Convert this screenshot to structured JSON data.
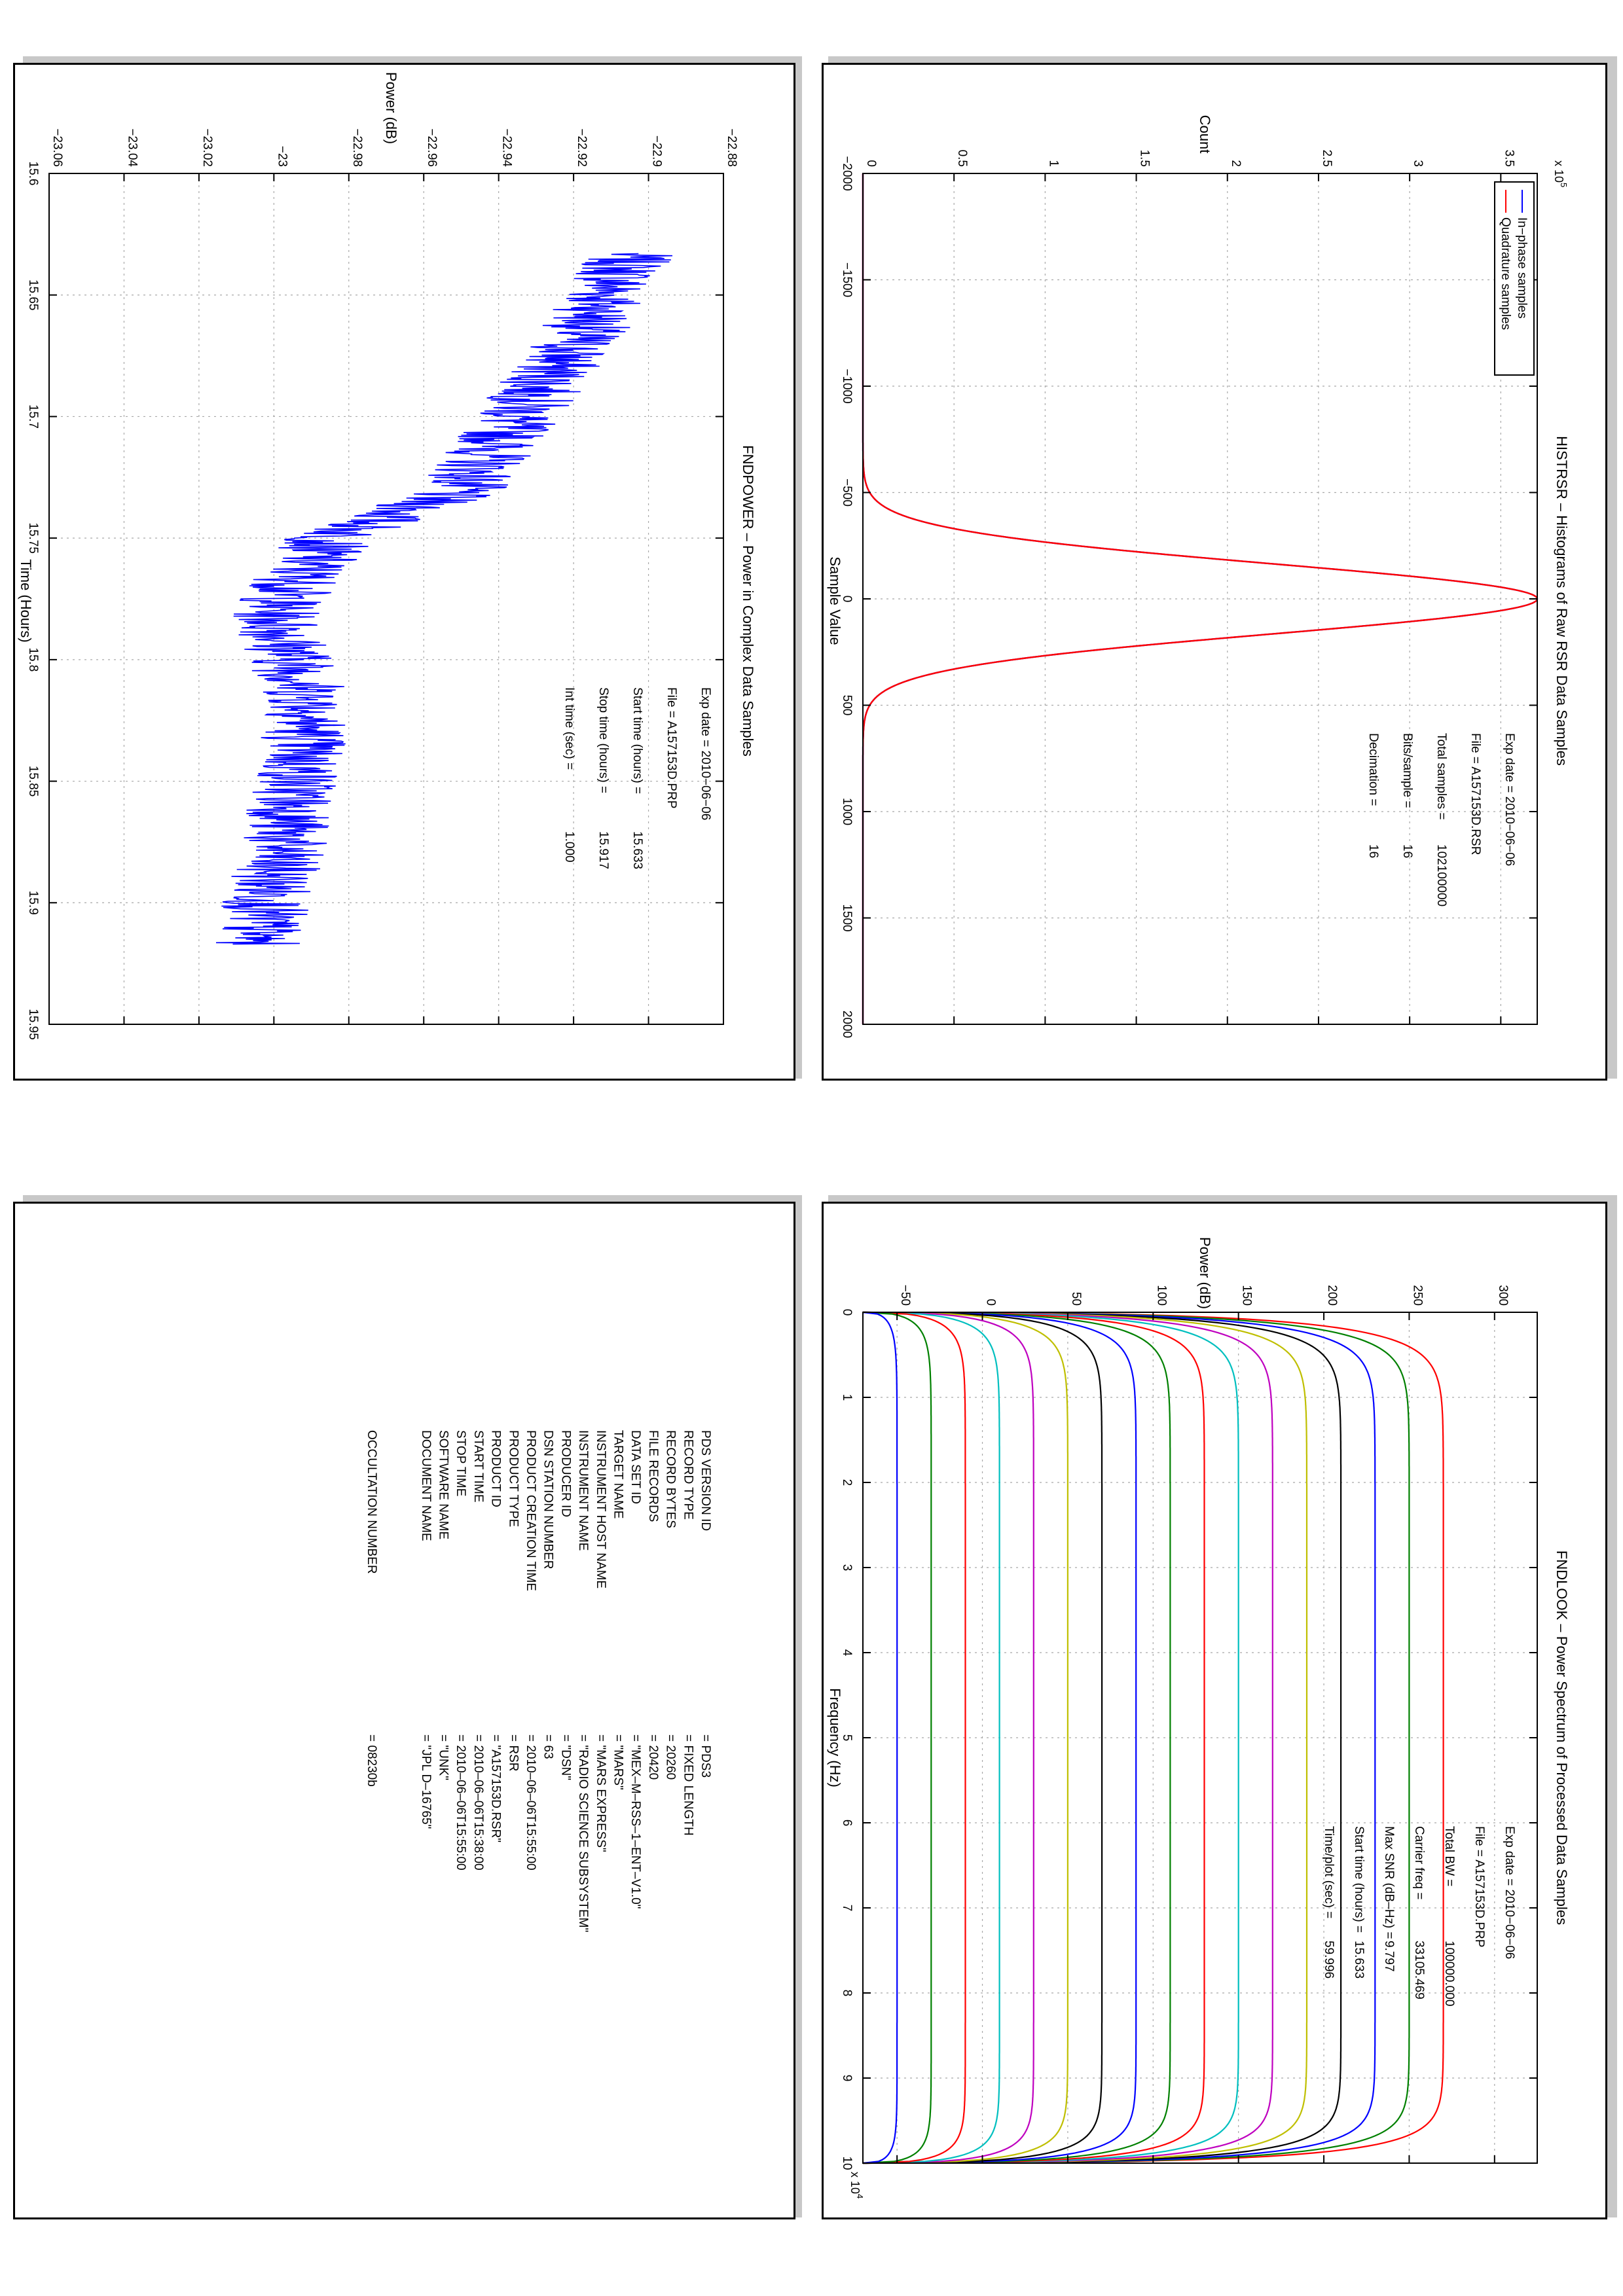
{
  "chart_data": [
    {
      "id": "histrsr",
      "type": "line",
      "title": "HISTRSR – Histograms of Raw RSR Data Samples",
      "xlabel": "Sample Value",
      "ylabel": "Count",
      "y_exponent_label": "x 10",
      "y_exponent": "5",
      "xlim": [
        -2000,
        2000
      ],
      "ylim": [
        0,
        3.7
      ],
      "xticks": [
        "−2000",
        "−1500",
        "−1000",
        "−500",
        "0",
        "500",
        "1000",
        "1500",
        "2000"
      ],
      "yticks": [
        "0",
        "0.5",
        "1",
        "1.5",
        "2",
        "2.5",
        "3",
        "3.5"
      ],
      "grid": true,
      "legend": {
        "placement": "top-left",
        "entries": [
          "In−phase samples",
          "Quadrature samples"
        ]
      },
      "series": [
        {
          "name": "In−phase samples",
          "color": "#0000ff",
          "peak": 3.7,
          "center": 0,
          "sigma": 165
        },
        {
          "name": "Quadrature samples",
          "color": "#ff0000",
          "peak": 3.7,
          "center": 0,
          "sigma": 165
        }
      ],
      "annotations": [
        {
          "label": "Exp date = 2010−06−06"
        },
        {
          "label": "File = A157153D.RSR"
        },
        {
          "label": "Total samples =",
          "value": "102100000"
        },
        {
          "label": "Bits/sample    =",
          "value": "16"
        },
        {
          "label": "Decimation   =",
          "value": "16"
        }
      ]
    },
    {
      "id": "fndpower",
      "type": "line",
      "title": "FNDPOWER – Power in Complex Data Samples",
      "xlabel": "Time (Hours)",
      "ylabel": "Power (dB)",
      "xlim": [
        15.6,
        15.95
      ],
      "ylim": [
        -23.06,
        -22.88
      ],
      "xticks": [
        "15.6",
        "15.65",
        "15.7",
        "15.75",
        "15.8",
        "15.85",
        "15.9",
        "15.95"
      ],
      "yticks": [
        "−23.06",
        "−23.04",
        "−23.02",
        "−23",
        "−22.98",
        "−22.96",
        "−22.94",
        "−22.92",
        "−22.9",
        "−22.88"
      ],
      "grid": true,
      "series": [
        {
          "color": "#0000ff",
          "x_range": [
            15.633,
            15.917
          ],
          "trend": [
            [
              15.633,
              -22.905
            ],
            [
              15.66,
              -22.915
            ],
            [
              15.7,
              -22.935
            ],
            [
              15.73,
              -22.95
            ],
            [
              15.75,
              -22.985
            ],
            [
              15.78,
              -23.0
            ],
            [
              15.82,
              -22.99
            ],
            [
              15.86,
              -22.995
            ],
            [
              15.917,
              -23.005
            ]
          ],
          "noise": 0.012
        }
      ],
      "annotations": [
        {
          "label": "Exp date = 2010−06−06"
        },
        {
          "label": "File = A157153D.PRP"
        },
        {
          "label": "Start time (hours) =",
          "value": "15.633"
        },
        {
          "label": "Stop time (hours)  =",
          "value": "15.917"
        },
        {
          "label": "Int time (sec) =",
          "value": "1.000"
        }
      ]
    },
    {
      "id": "fndlook",
      "type": "line",
      "title": "FNDLOOK – Power Spectrum of Processed Data Samples",
      "xlabel": "Frequency (Hz)",
      "ylabel": "Power (dB)",
      "x_exponent_label": "x 10",
      "x_exponent": "4",
      "xlim": [
        0,
        10
      ],
      "ylim": [
        -70,
        325
      ],
      "xticks": [
        "0",
        "1",
        "2",
        "3",
        "4",
        "5",
        "6",
        "7",
        "8",
        "9",
        "10"
      ],
      "yticks": [
        "−50",
        "0",
        "50",
        "100",
        "150",
        "200",
        "250",
        "300"
      ],
      "grid": true,
      "series": [
        {
          "color": "#ff0000",
          "level": 270
        },
        {
          "color": "#008000",
          "level": 250
        },
        {
          "color": "#0000ff",
          "level": 230
        },
        {
          "color": "#000000",
          "level": 210
        },
        {
          "color": "#bfbf00",
          "level": 190
        },
        {
          "color": "#bf00bf",
          "level": 170
        },
        {
          "color": "#00bfbf",
          "level": 150
        },
        {
          "color": "#ff0000",
          "level": 130
        },
        {
          "color": "#008000",
          "level": 110
        },
        {
          "color": "#0000ff",
          "level": 90
        },
        {
          "color": "#000000",
          "level": 70
        },
        {
          "color": "#bfbf00",
          "level": 50
        },
        {
          "color": "#bf00bf",
          "level": 30
        },
        {
          "color": "#00bfbf",
          "level": 10
        },
        {
          "color": "#ff0000",
          "level": -10
        },
        {
          "color": "#008000",
          "level": -30
        },
        {
          "color": "#0000ff",
          "level": -50
        }
      ],
      "annotations": [
        {
          "label": "Exp date = 2010−06−06"
        },
        {
          "label": "File = A157153D.PRP"
        },
        {
          "label": "Total BW =",
          "value": "100000.000"
        },
        {
          "label": "Carrier freq =",
          "value": "33105.469"
        },
        {
          "label": "Max SNR (dB–Hz) =",
          "value": "9.797"
        },
        {
          "label": "Start time (hours) =",
          "value": "15.633"
        },
        {
          "label": "Time/plot (sec) =",
          "value": "59.996"
        }
      ]
    }
  ],
  "label_table": {
    "rows": [
      {
        "key": "PDS VERSION ID",
        "value": "=  PDS3"
      },
      {
        "key": "RECORD TYPE",
        "value": "=  FIXED LENGTH"
      },
      {
        "key": "RECORD BYTES",
        "value": "=  20260"
      },
      {
        "key": "FILE RECORDS",
        "value": "=  20420"
      },
      {
        "key": "DATA SET ID",
        "value": "=  \"MEX–M–RSS–1–ENT–V1.0\""
      },
      {
        "key": "TARGET NAME",
        "value": "=  \"MARS\""
      },
      {
        "key": "INSTRUMENT HOST NAME",
        "value": "=  \"MARS EXPRESS\""
      },
      {
        "key": "INSTRUMENT NAME",
        "value": "=  \"RADIO SCIENCE SUBSYSTEM\""
      },
      {
        "key": "PRODUCER ID",
        "value": "=  \"DSN\""
      },
      {
        "key": "DSN STATION NUMBER",
        "value": "=  63"
      },
      {
        "key": "PRODUCT CREATION TIME",
        "value": "=  2010–06–06T15:55:00"
      },
      {
        "key": "PRODUCT TYPE",
        "value": "=  RSR"
      },
      {
        "key": "PRODUCT ID",
        "value": "=  \"A157153D.RSR\""
      },
      {
        "key": "START TIME",
        "value": "=  2010–06–06T15:38:00"
      },
      {
        "key": "STOP TIME",
        "value": "=  2010–06–06T15:55:00"
      },
      {
        "key": "SOFTWARE NAME",
        "value": "=  \"UNK\""
      },
      {
        "key": "DOCUMENT NAME",
        "value": "=  \"JPL D–16765\""
      }
    ],
    "footer": {
      "key": "OCCULTATION NUMBER",
      "value": "=  08230b"
    }
  }
}
